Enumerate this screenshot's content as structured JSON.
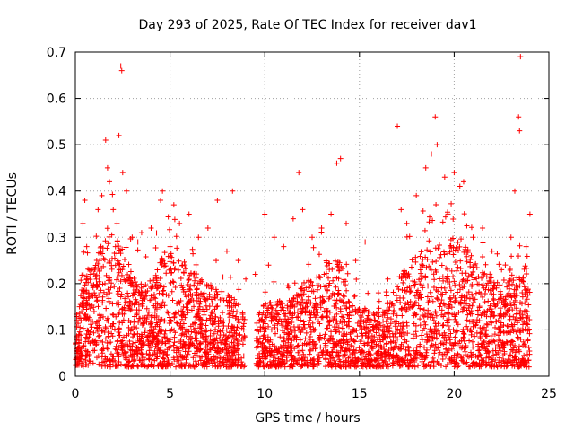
{
  "chart_data": {
    "type": "scatter",
    "title": "Day 293 of 2025, Rate Of TEC Index for receiver dav1",
    "xlabel": "GPS time / hours",
    "ylabel": "ROTI / TECUs",
    "xlim": [
      0,
      25
    ],
    "ylim": [
      0,
      0.7
    ],
    "xticks": [
      "0",
      "5",
      "10",
      "15",
      "20",
      "25"
    ],
    "yticks": [
      "0",
      "0.1",
      "0.2",
      "0.3",
      "0.4",
      "0.5",
      "0.6",
      "0.7"
    ],
    "grid": true,
    "marker": "+",
    "color": "#ff0000",
    "series": [
      {
        "points": [
          [
            0.1,
            0.05
          ],
          [
            0.2,
            0.09
          ],
          [
            0.3,
            0.12
          ],
          [
            0.4,
            0.33
          ],
          [
            0.5,
            0.38
          ],
          [
            0.6,
            0.28
          ],
          [
            0.8,
            0.22
          ],
          [
            1.0,
            0.18
          ],
          [
            1.2,
            0.36
          ],
          [
            1.4,
            0.39
          ],
          [
            1.6,
            0.51
          ],
          [
            1.7,
            0.45
          ],
          [
            1.8,
            0.42
          ],
          [
            2.0,
            0.36
          ],
          [
            2.2,
            0.33
          ],
          [
            2.4,
            0.67
          ],
          [
            2.45,
            0.66
          ],
          [
            2.3,
            0.52
          ],
          [
            2.5,
            0.44
          ],
          [
            2.7,
            0.4
          ],
          [
            3.0,
            0.3
          ],
          [
            3.3,
            0.29
          ],
          [
            3.5,
            0.31
          ],
          [
            4.0,
            0.32
          ],
          [
            4.5,
            0.38
          ],
          [
            4.6,
            0.4
          ],
          [
            5.0,
            0.28
          ],
          [
            5.2,
            0.37
          ],
          [
            5.5,
            0.33
          ],
          [
            6.0,
            0.35
          ],
          [
            6.5,
            0.3
          ],
          [
            7.0,
            0.32
          ],
          [
            7.5,
            0.38
          ],
          [
            8.0,
            0.27
          ],
          [
            8.3,
            0.4
          ],
          [
            8.6,
            0.25
          ],
          [
            9.0,
            0.21
          ],
          [
            9.5,
            0.22
          ],
          [
            10.0,
            0.35
          ],
          [
            10.2,
            0.24
          ],
          [
            10.5,
            0.3
          ],
          [
            11.0,
            0.28
          ],
          [
            11.5,
            0.34
          ],
          [
            11.8,
            0.44
          ],
          [
            12.0,
            0.36
          ],
          [
            12.5,
            0.3
          ],
          [
            13.0,
            0.32
          ],
          [
            13.5,
            0.35
          ],
          [
            13.8,
            0.46
          ],
          [
            14.0,
            0.47
          ],
          [
            14.3,
            0.33
          ],
          [
            14.8,
            0.25
          ],
          [
            15.3,
            0.29
          ],
          [
            16.0,
            0.18
          ],
          [
            16.5,
            0.21
          ],
          [
            17.0,
            0.54
          ],
          [
            17.2,
            0.36
          ],
          [
            17.5,
            0.33
          ],
          [
            18.0,
            0.39
          ],
          [
            18.5,
            0.45
          ],
          [
            18.8,
            0.48
          ],
          [
            19.0,
            0.56
          ],
          [
            19.1,
            0.5
          ],
          [
            19.5,
            0.43
          ],
          [
            20.0,
            0.44
          ],
          [
            20.3,
            0.41
          ],
          [
            20.5,
            0.42
          ],
          [
            21.0,
            0.3
          ],
          [
            21.5,
            0.32
          ],
          [
            22.0,
            0.27
          ],
          [
            22.5,
            0.23
          ],
          [
            23.0,
            0.3
          ],
          [
            23.2,
            0.4
          ],
          [
            23.4,
            0.56
          ],
          [
            23.45,
            0.53
          ],
          [
            23.5,
            0.69
          ],
          [
            23.8,
            0.28
          ],
          [
            24.0,
            0.35
          ]
        ]
      }
    ],
    "density_band": [
      [
        0,
        0.02,
        0.12
      ],
      [
        0.5,
        0.02,
        0.22
      ],
      [
        1,
        0.02,
        0.26
      ],
      [
        1.5,
        0.02,
        0.3
      ],
      [
        2,
        0.02,
        0.32
      ],
      [
        2.5,
        0.02,
        0.28
      ],
      [
        3,
        0.02,
        0.22
      ],
      [
        3.5,
        0.02,
        0.2
      ],
      [
        4,
        0.02,
        0.2
      ],
      [
        4.5,
        0.02,
        0.26
      ],
      [
        5,
        0.02,
        0.28
      ],
      [
        5.5,
        0.02,
        0.26
      ],
      [
        6,
        0.02,
        0.24
      ],
      [
        6.5,
        0.02,
        0.22
      ],
      [
        7,
        0.02,
        0.2
      ],
      [
        7.5,
        0.02,
        0.19
      ],
      [
        8,
        0.02,
        0.18
      ],
      [
        8.5,
        0.02,
        0.16
      ],
      [
        9,
        0.02,
        0.13
      ],
      [
        9.5,
        0.02,
        0.14
      ],
      [
        10,
        0.02,
        0.16
      ],
      [
        10.5,
        0.02,
        0.17
      ],
      [
        11,
        0.02,
        0.16
      ],
      [
        11.5,
        0.02,
        0.17
      ],
      [
        12,
        0.02,
        0.2
      ],
      [
        12.5,
        0.02,
        0.22
      ],
      [
        13,
        0.02,
        0.24
      ],
      [
        13.5,
        0.02,
        0.26
      ],
      [
        14,
        0.02,
        0.25
      ],
      [
        14.5,
        0.02,
        0.2
      ],
      [
        15,
        0.02,
        0.16
      ],
      [
        15.5,
        0.02,
        0.14
      ],
      [
        16,
        0.02,
        0.14
      ],
      [
        16.5,
        0.02,
        0.16
      ],
      [
        17,
        0.02,
        0.2
      ],
      [
        17.5,
        0.02,
        0.24
      ],
      [
        18,
        0.02,
        0.26
      ],
      [
        18.5,
        0.02,
        0.28
      ],
      [
        19,
        0.02,
        0.3
      ],
      [
        19.5,
        0.02,
        0.27
      ],
      [
        20,
        0.02,
        0.3
      ],
      [
        20.5,
        0.02,
        0.3
      ],
      [
        21,
        0.02,
        0.26
      ],
      [
        21.5,
        0.02,
        0.23
      ],
      [
        22,
        0.02,
        0.22
      ],
      [
        22.5,
        0.02,
        0.2
      ],
      [
        23,
        0.02,
        0.22
      ],
      [
        23.5,
        0.02,
        0.24
      ],
      [
        24,
        0.02,
        0.22
      ]
    ]
  }
}
